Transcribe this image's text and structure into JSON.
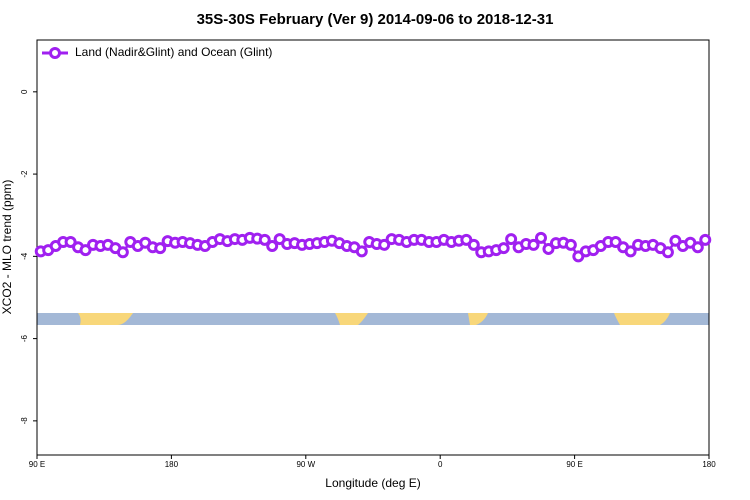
{
  "chart_data": {
    "type": "line",
    "title": "35S-30S February (Ver 9)   2014-09-06 to 2018-12-31",
    "xlabel": "Longitude (deg E)",
    "ylabel": "XCO2 - MLO trend (ppm)",
    "xlim": [
      90,
      540
    ],
    "xticks": [
      {
        "value": 90,
        "label": "90 E"
      },
      180,
      {
        "value": 270,
        "label": "90 W"
      },
      {
        "value": 360,
        "label": "0"
      },
      {
        "value": 450,
        "label": "90 E"
      },
      {
        "value": 540,
        "label": "180"
      }
    ],
    "ylim": [
      -8.83,
      1.26
    ],
    "yticks": [
      0,
      -2,
      -4,
      -6,
      -8
    ],
    "legend": "top-left",
    "series": [
      {
        "name": "Land (Nadir&Glint) and Ocean (Glint)",
        "color": "#a020f0",
        "x": [
          92.5,
          97.5,
          102.5,
          107.5,
          112.5,
          117.5,
          122.5,
          127.5,
          132.5,
          137.5,
          142.5,
          147.5,
          152.5,
          157.5,
          162.5,
          167.5,
          172.5,
          177.5,
          182.5,
          187.5,
          192.5,
          197.5,
          202.5,
          207.5,
          212.5,
          217.5,
          222.5,
          227.5,
          232.5,
          237.5,
          242.5,
          247.5,
          252.5,
          257.5,
          262.5,
          267.5,
          272.5,
          277.5,
          282.5,
          287.5,
          292.5,
          297.5,
          302.5,
          307.5,
          312.5,
          317.5,
          322.5,
          327.5,
          332.5,
          337.5,
          342.5,
          347.5,
          352.5,
          357.5,
          362.5,
          367.5,
          372.5,
          377.5,
          382.5,
          387.5,
          392.5,
          397.5,
          402.5,
          407.5,
          412.5,
          417.5,
          422.5,
          427.5,
          432.5,
          437.5,
          442.5,
          447.5,
          452.5,
          457.5,
          462.5,
          467.5,
          472.5,
          477.5,
          482.5,
          487.5,
          492.5,
          497.5,
          502.5,
          507.5,
          512.5,
          517.5,
          522.5,
          527.5,
          532.5,
          537.5
        ],
        "values": [
          -3.88,
          -3.85,
          -3.75,
          -3.65,
          -3.65,
          -3.78,
          -3.85,
          -3.72,
          -3.75,
          -3.72,
          -3.8,
          -3.9,
          -3.65,
          -3.75,
          -3.67,
          -3.78,
          -3.8,
          -3.63,
          -3.67,
          -3.65,
          -3.68,
          -3.72,
          -3.75,
          -3.65,
          -3.58,
          -3.63,
          -3.58,
          -3.6,
          -3.55,
          -3.57,
          -3.6,
          -3.75,
          -3.58,
          -3.7,
          -3.68,
          -3.72,
          -3.7,
          -3.68,
          -3.65,
          -3.62,
          -3.68,
          -3.75,
          -3.78,
          -3.88,
          -3.65,
          -3.7,
          -3.72,
          -3.58,
          -3.6,
          -3.65,
          -3.6,
          -3.6,
          -3.65,
          -3.65,
          -3.6,
          -3.65,
          -3.62,
          -3.6,
          -3.72,
          -3.9,
          -3.88,
          -3.85,
          -3.8,
          -3.58,
          -3.78,
          -3.7,
          -3.72,
          -3.55,
          -3.82,
          -3.68,
          -3.67,
          -3.72,
          -4.0,
          -3.88,
          -3.85,
          -3.75,
          -3.65,
          -3.65,
          -3.78,
          -3.88,
          -3.72,
          -3.75,
          -3.72,
          -3.8,
          -3.9,
          -3.62,
          -3.75,
          -3.67,
          -3.78,
          -3.6
        ]
      }
    ]
  }
}
